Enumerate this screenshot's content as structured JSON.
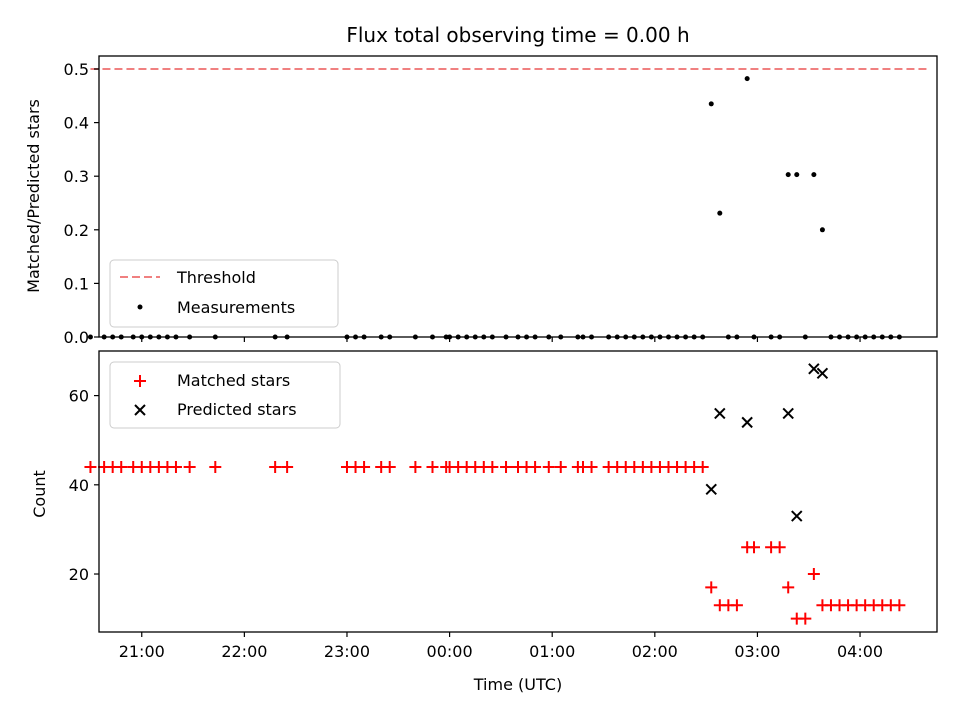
{
  "chart_data": [
    {
      "type": "scatter",
      "title": "Flux total observing time = 0.00 h",
      "xlabel": "",
      "ylabel": "Matched/Predicted stars",
      "xlim": [
        "20:35",
        "04:45"
      ],
      "ylim": [
        0,
        0.5
      ],
      "yticks": [
        0.0,
        0.1,
        0.2,
        0.3,
        0.4,
        0.5
      ],
      "ytick_labels": [
        "0.0",
        "0.1",
        "0.2",
        "0.3",
        "0.4",
        "0.5"
      ],
      "legend_position": "lower-left",
      "grid": false,
      "threshold": {
        "name": "Threshold",
        "value": 0.5,
        "x_start": "20:30",
        "x_end": "04:40",
        "style": "dashed",
        "color": "#f08080"
      },
      "series": [
        {
          "name": "Measurements",
          "marker": "dot",
          "color": "#000000",
          "x": [
            "20:30",
            "20:38",
            "20:43",
            "20:48",
            "20:55",
            "21:00",
            "21:05",
            "21:10",
            "21:15",
            "21:20",
            "21:28",
            "21:43",
            "22:18",
            "22:25",
            "23:00",
            "23:05",
            "23:10",
            "23:20",
            "23:25",
            "23:40",
            "23:50",
            "23:58",
            "00:00",
            "00:05",
            "00:10",
            "00:15",
            "00:20",
            "00:25",
            "00:33",
            "00:40",
            "00:45",
            "00:50",
            "00:58",
            "01:05",
            "01:15",
            "01:18",
            "01:23",
            "01:33",
            "01:38",
            "01:43",
            "01:48",
            "01:53",
            "01:58",
            "02:03",
            "02:08",
            "02:13",
            "02:18",
            "02:23",
            "02:28",
            "02:33",
            "02:38",
            "02:43",
            "02:48",
            "02:54",
            "02:58",
            "03:08",
            "03:13",
            "03:18",
            "03:23",
            "03:28",
            "03:33",
            "03:38",
            "03:43",
            "03:48",
            "03:53",
            "03:58",
            "04:03",
            "04:08",
            "04:13",
            "04:18",
            "04:23"
          ],
          "y": [
            0,
            0,
            0,
            0,
            0,
            0,
            0,
            0,
            0,
            0,
            0,
            0,
            0,
            0,
            0,
            0,
            0,
            0,
            0,
            0,
            0,
            0,
            0,
            0,
            0,
            0,
            0,
            0,
            0,
            0,
            0,
            0,
            0,
            0,
            0,
            0,
            0,
            0,
            0,
            0,
            0,
            0,
            0,
            0,
            0,
            0,
            0,
            0,
            0,
            0.435,
            0.231,
            0,
            0,
            0.482,
            0,
            0,
            0,
            0.303,
            0.303,
            0,
            0.303,
            0.2,
            0,
            0,
            0,
            0,
            0,
            0,
            0,
            0,
            0
          ]
        }
      ]
    },
    {
      "type": "scatter",
      "title": "",
      "xlabel": "Time (UTC)",
      "ylabel": "Count",
      "xlim": [
        "20:35",
        "04:45"
      ],
      "ylim": [
        7,
        70
      ],
      "yticks": [
        20,
        40,
        60
      ],
      "ytick_labels": [
        "20",
        "40",
        "60"
      ],
      "xticks": [
        "21:00",
        "22:00",
        "23:00",
        "00:00",
        "01:00",
        "02:00",
        "03:00",
        "04:00"
      ],
      "legend_position": "upper-left",
      "grid": false,
      "series": [
        {
          "name": "Matched stars",
          "marker": "plus",
          "color": "#ff0000",
          "x": [
            "20:30",
            "20:38",
            "20:43",
            "20:48",
            "20:55",
            "21:00",
            "21:05",
            "21:10",
            "21:15",
            "21:20",
            "21:28",
            "21:43",
            "22:18",
            "22:25",
            "23:00",
            "23:05",
            "23:10",
            "23:20",
            "23:25",
            "23:40",
            "23:50",
            "23:58",
            "00:00",
            "00:05",
            "00:10",
            "00:15",
            "00:20",
            "00:25",
            "00:33",
            "00:40",
            "00:45",
            "00:50",
            "00:58",
            "01:05",
            "01:15",
            "01:18",
            "01:23",
            "01:33",
            "01:38",
            "01:43",
            "01:48",
            "01:53",
            "01:58",
            "02:03",
            "02:08",
            "02:13",
            "02:18",
            "02:23",
            "02:28",
            "02:33",
            "02:38",
            "02:43",
            "02:48",
            "02:54",
            "02:58",
            "03:08",
            "03:13",
            "03:18",
            "03:23",
            "03:28",
            "03:33",
            "03:38",
            "03:43",
            "03:48",
            "03:53",
            "03:58",
            "04:03",
            "04:08",
            "04:13",
            "04:18",
            "04:23"
          ],
          "y": [
            44,
            44,
            44,
            44,
            44,
            44,
            44,
            44,
            44,
            44,
            44,
            44,
            44,
            44,
            44,
            44,
            44,
            44,
            44,
            44,
            44,
            44,
            44,
            44,
            44,
            44,
            44,
            44,
            44,
            44,
            44,
            44,
            44,
            44,
            44,
            44,
            44,
            44,
            44,
            44,
            44,
            44,
            44,
            44,
            44,
            44,
            44,
            44,
            44,
            17,
            13,
            13,
            13,
            26,
            26,
            26,
            26,
            17,
            10,
            10,
            20,
            13,
            13,
            13,
            13,
            13,
            13,
            13,
            13,
            13,
            13
          ]
        },
        {
          "name": "Predicted stars",
          "marker": "x",
          "color": "#000000",
          "x": [
            "02:33",
            "02:38",
            "02:54",
            "03:18",
            "03:23",
            "03:33",
            "03:38"
          ],
          "y": [
            39,
            56,
            54,
            56,
            33,
            66,
            65
          ]
        }
      ]
    }
  ]
}
